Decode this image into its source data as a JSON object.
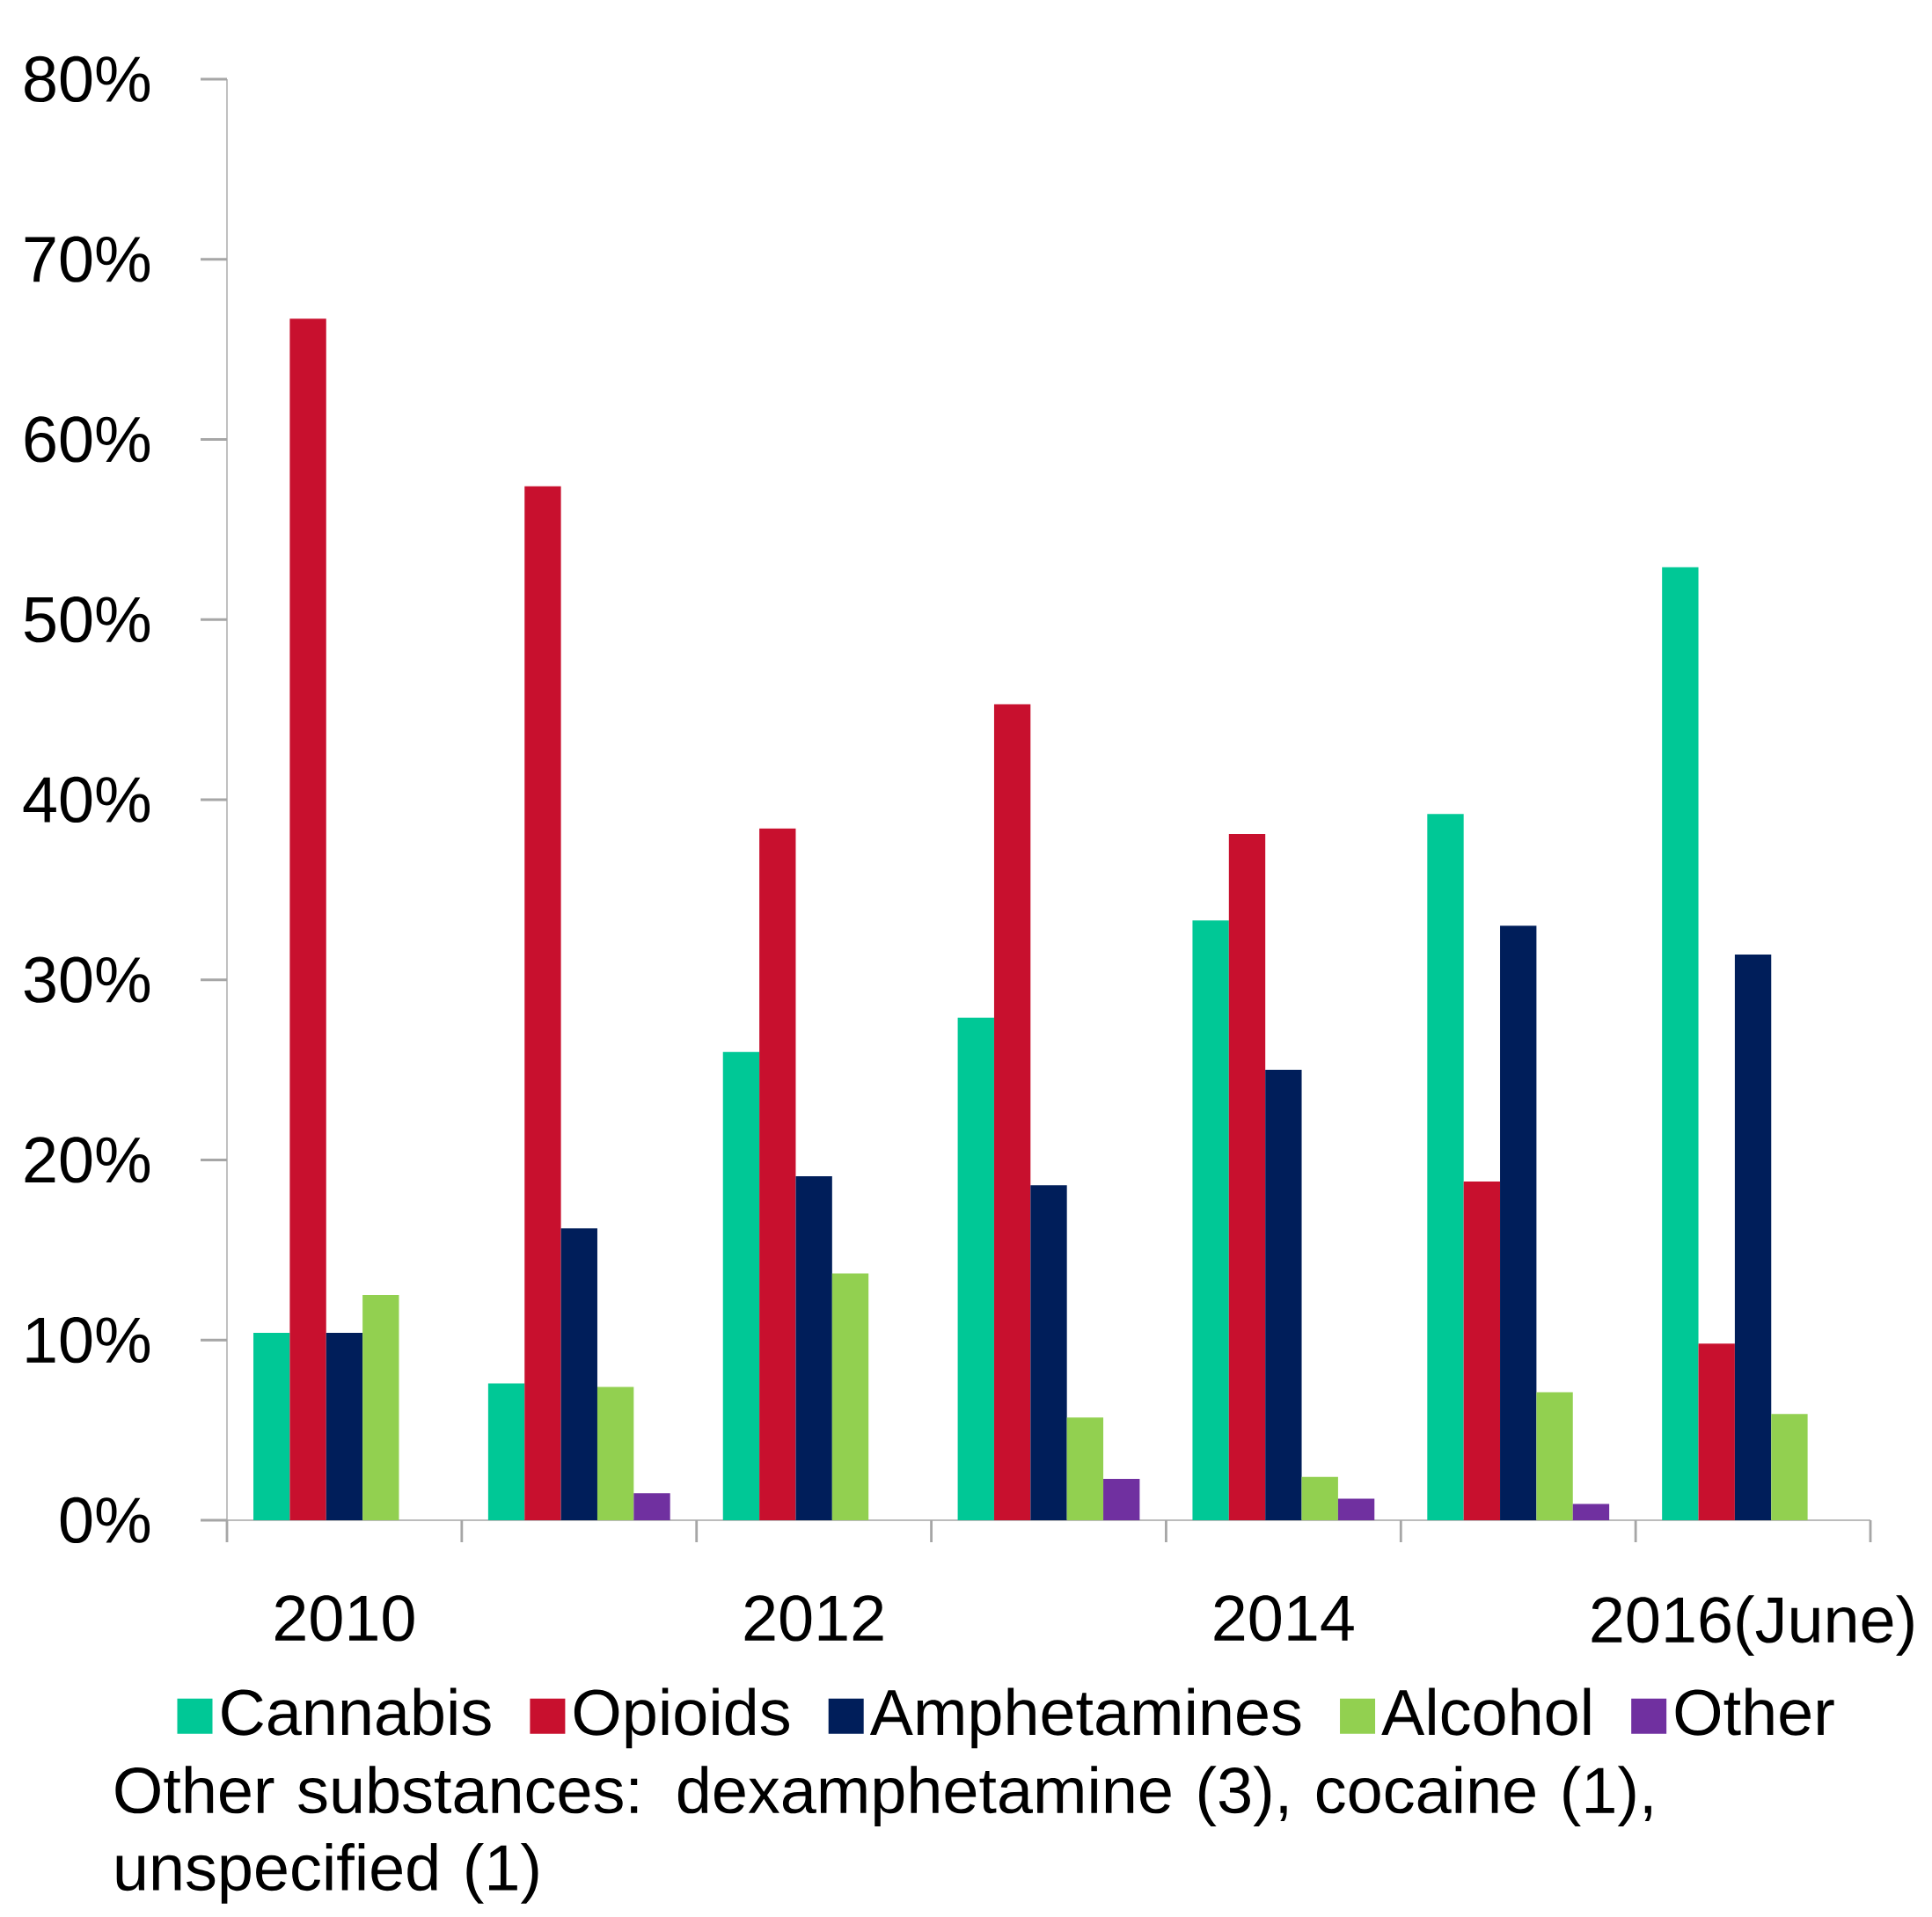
{
  "chart_data": {
    "type": "bar",
    "categories": [
      "2010",
      null,
      "2012",
      null,
      "2014",
      null,
      "2016(June)"
    ],
    "series": [
      {
        "name": "Cannabis",
        "color": "#00c896",
        "values": [
          10.4,
          7.6,
          26.0,
          27.9,
          33.3,
          39.2,
          52.9
        ]
      },
      {
        "name": "Opioids",
        "color": "#c8102e",
        "values": [
          66.7,
          57.4,
          38.4,
          45.3,
          38.1,
          18.8,
          9.8
        ]
      },
      {
        "name": "Amphetamines",
        "color": "#001e5a",
        "values": [
          10.4,
          16.2,
          19.1,
          18.6,
          25.0,
          33.0,
          31.4
        ]
      },
      {
        "name": "Alcohol",
        "color": "#92d050",
        "values": [
          12.5,
          7.4,
          13.7,
          5.7,
          2.4,
          7.1,
          5.9
        ]
      },
      {
        "name": "Other",
        "color": "#7030a0",
        "values": [
          null,
          1.5,
          null,
          2.3,
          1.2,
          0.9,
          null
        ]
      }
    ],
    "ylim": [
      0,
      80
    ],
    "yticks": [
      {
        "value": 0,
        "label": "0%"
      },
      {
        "value": 10,
        "label": "10%"
      },
      {
        "value": 20,
        "label": "20%"
      },
      {
        "value": 30,
        "label": "30%"
      },
      {
        "value": 40,
        "label": "40%"
      },
      {
        "value": 50,
        "label": "50%"
      },
      {
        "value": 60,
        "label": "60%"
      },
      {
        "value": 70,
        "label": "70%"
      },
      {
        "value": 80,
        "label": "80%"
      }
    ],
    "legend": "bottom",
    "annotations": [
      "Other substances: dexamphetamine (3), cocaine (1), unspecified (1)"
    ]
  }
}
